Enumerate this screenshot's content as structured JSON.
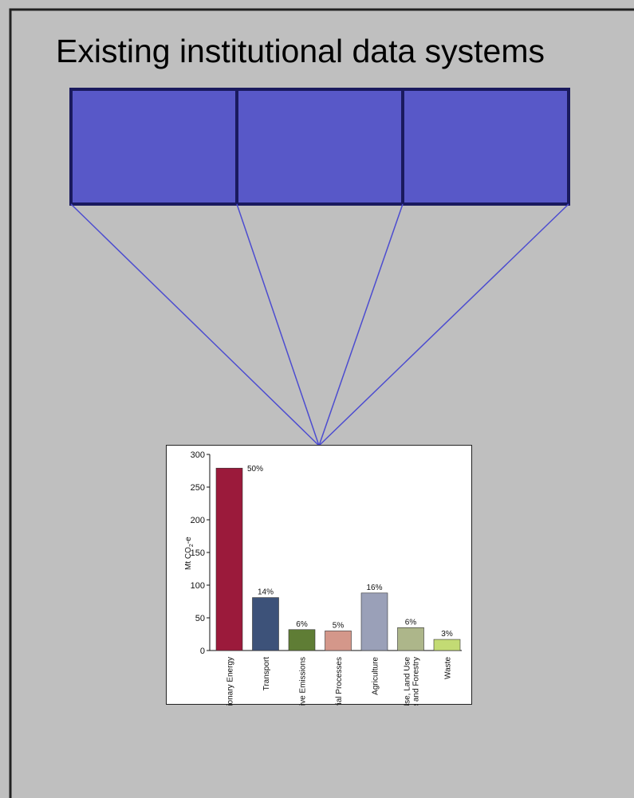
{
  "title": "Existing institutional data systems",
  "colors": {
    "background": "#bfbfbf",
    "box_fill": "#5858c8",
    "box_stroke": "#1a1a5e",
    "connector": "#4c4cd0"
  },
  "data_system_boxes": [
    {
      "label": ""
    },
    {
      "label": ""
    },
    {
      "label": ""
    }
  ],
  "chart_data": {
    "type": "bar",
    "ylabel": "Mt CO₂-e",
    "ylabel_main": "Mt CO",
    "ylabel_sub": "2",
    "ylabel_tail": "-e",
    "ylim": [
      0,
      300
    ],
    "yticks": [
      0,
      50,
      100,
      150,
      200,
      250,
      300
    ],
    "categories": [
      "Stationary Energy",
      "Transport",
      "Fugitive Emissions",
      "Industrial Processes",
      "Agriculture",
      "Land Use, Land Use Change and Forestry",
      "Waste"
    ],
    "category_lines": [
      [
        "Stationary Energy"
      ],
      [
        "Transport"
      ],
      [
        "Fugitive Emissions"
      ],
      [
        "Industrial Processes"
      ],
      [
        "Agriculture"
      ],
      [
        "Land Use, Land Use",
        "Change and Forestry"
      ],
      [
        "Waste"
      ]
    ],
    "values": [
      279,
      81,
      32,
      30,
      88,
      35,
      17
    ],
    "labels": [
      "50%",
      "14%",
      "6%",
      "5%",
      "16%",
      "6%",
      "3%"
    ],
    "bar_colors": [
      "#9b1a3b",
      "#3d5279",
      "#5f7d35",
      "#d4978a",
      "#9aa0b8",
      "#adb68a",
      "#c3db74"
    ]
  }
}
